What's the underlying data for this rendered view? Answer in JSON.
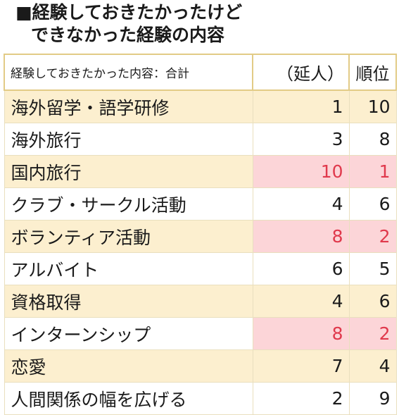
{
  "title": {
    "line1": "■経験しておきたかったけど",
    "line2": "できなかった経験の内容"
  },
  "colors": {
    "header_border": "#e2cb86",
    "row_alt_bg": "#fcefcf",
    "highlight_bg": "#fcd5d8",
    "highlight_text": "#e0394c"
  },
  "chart_data": {
    "type": "table",
    "columns": [
      "経験しておきたかった内容：合計",
      "（延人）",
      "順位"
    ],
    "rows": [
      {
        "label": "海外留学・語学研修",
        "count": 1,
        "rank": 10,
        "highlight": false
      },
      {
        "label": "海外旅行",
        "count": 3,
        "rank": 8,
        "highlight": false
      },
      {
        "label": "国内旅行",
        "count": 10,
        "rank": 1,
        "highlight": true
      },
      {
        "label": "クラブ・サークル活動",
        "count": 4,
        "rank": 6,
        "highlight": false
      },
      {
        "label": "ボランティア活動",
        "count": 8,
        "rank": 2,
        "highlight": true
      },
      {
        "label": "アルバイト",
        "count": 6,
        "rank": 5,
        "highlight": false
      },
      {
        "label": "資格取得",
        "count": 4,
        "rank": 6,
        "highlight": false
      },
      {
        "label": "インターンシップ",
        "count": 8,
        "rank": 2,
        "highlight": true
      },
      {
        "label": "恋愛",
        "count": 7,
        "rank": 4,
        "highlight": false
      },
      {
        "label": "人間関係の幅を広げる",
        "count": 2,
        "rank": 9,
        "highlight": false
      }
    ]
  }
}
